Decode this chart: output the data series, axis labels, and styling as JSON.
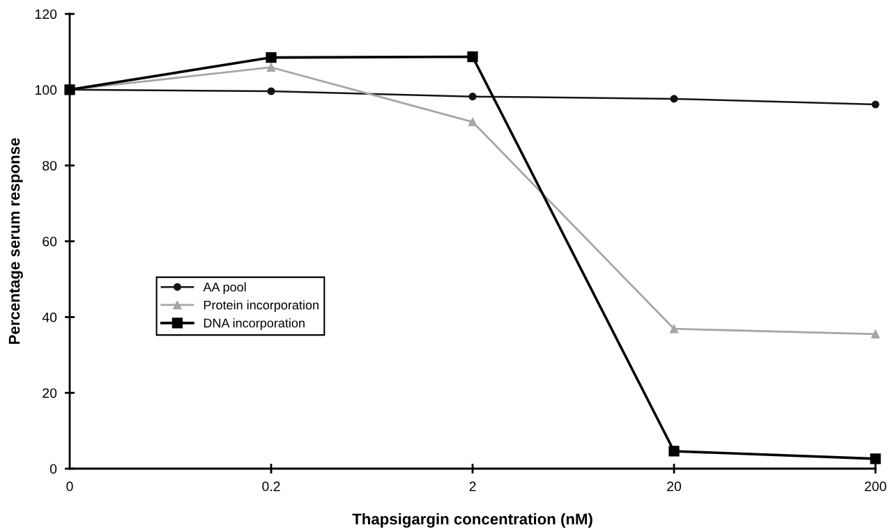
{
  "chart_data": {
    "type": "line",
    "xlabel": "Thapsigargin concentration (nM)",
    "ylabel": "Percentage serum response",
    "categories": [
      "0",
      "0.2",
      "2",
      "20",
      "200"
    ],
    "series": [
      {
        "name": "AA pool",
        "color": "#141414",
        "marker": "circle",
        "values": [
          100,
          99.6,
          98.2,
          97.6,
          96.1
        ]
      },
      {
        "name": "Protein incorporation",
        "color": "#a6a6a6",
        "marker": "triangle",
        "values": [
          100,
          105.9,
          91.5,
          36.9,
          35.5
        ]
      },
      {
        "name": "DNA incorporation",
        "color": "#000000",
        "marker": "square",
        "values": [
          100,
          108.5,
          108.7,
          4.6,
          2.6
        ]
      }
    ],
    "ylim": [
      0,
      120
    ],
    "yticks": [
      0,
      20,
      40,
      60,
      80,
      100,
      120
    ],
    "grid": false,
    "legend": "bottom left"
  }
}
